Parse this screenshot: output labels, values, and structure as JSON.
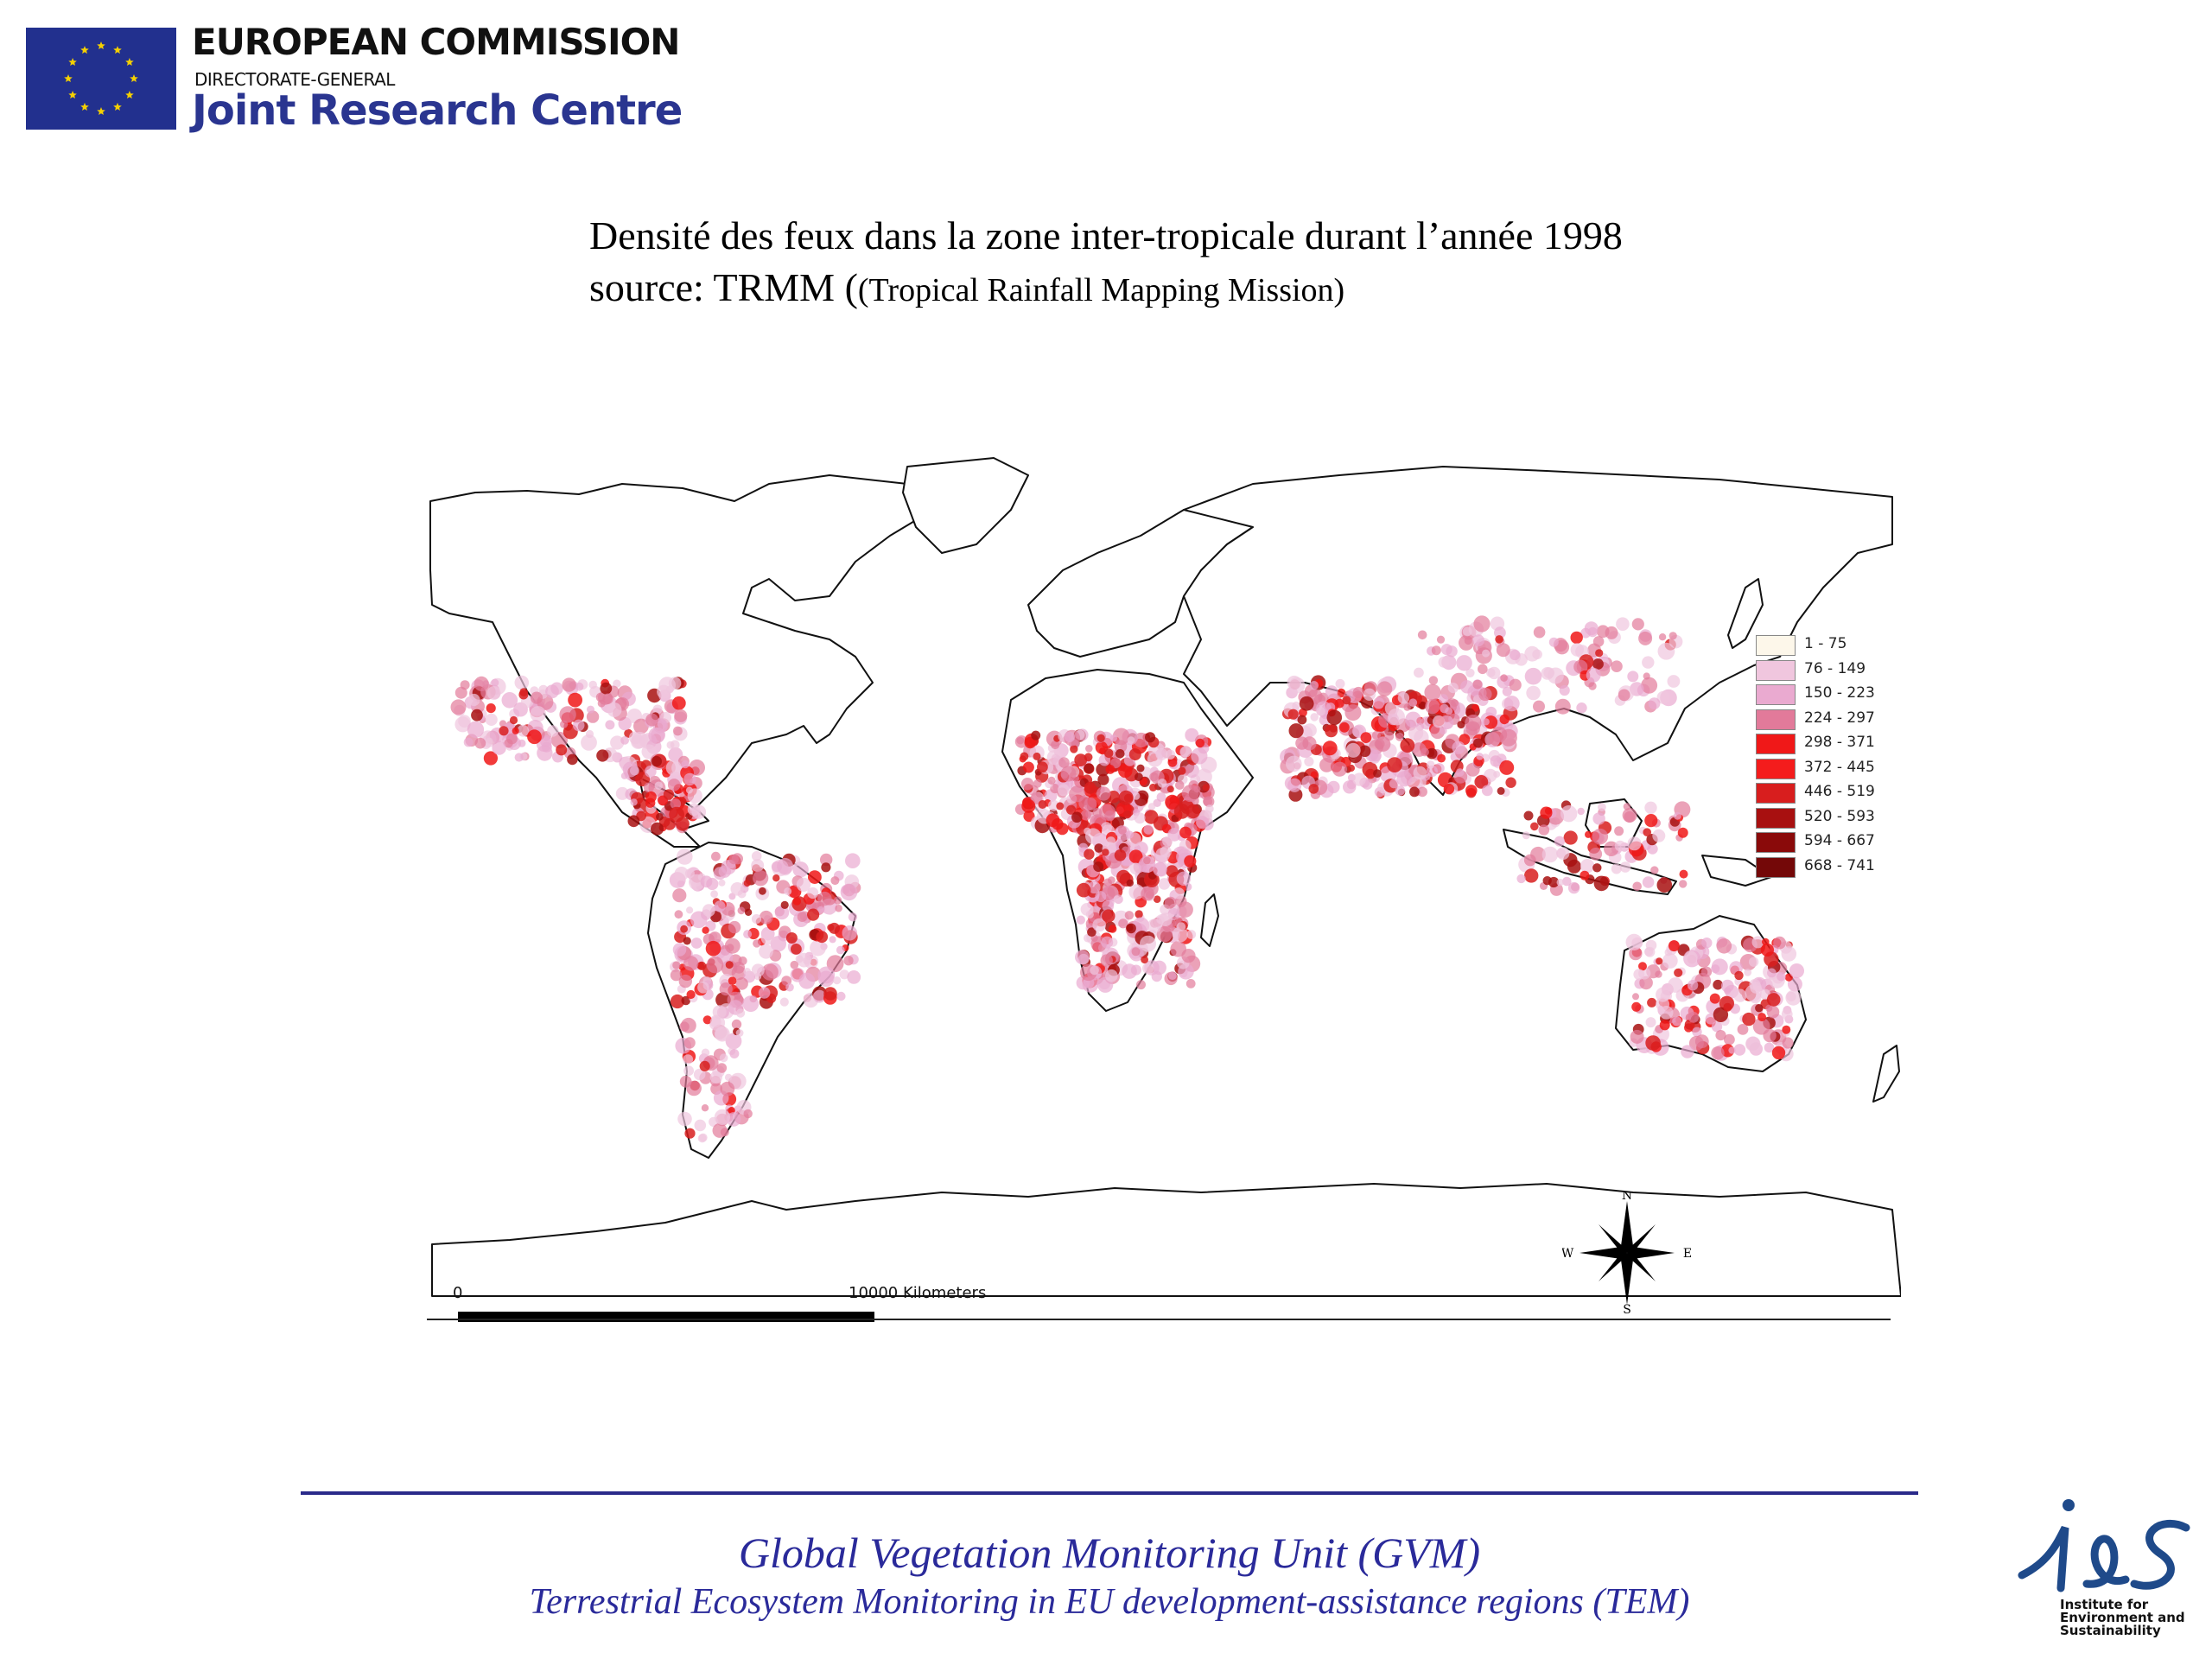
{
  "header": {
    "org_name": "EUROPEAN COMMISSION",
    "directorate": "DIRECTORATE-GENERAL",
    "unit": "Joint Research Centre"
  },
  "title": {
    "line1": "Densité des feux dans la zone inter-tropicale durant l’année 1998",
    "line2_prefix": "source: TRMM (",
    "line2_suffix": "(Tropical Rainfall Mapping Mission)"
  },
  "legend": {
    "items": [
      {
        "label": "1 - 75",
        "color": "#fdf7ea"
      },
      {
        "label": "76 - 149",
        "color": "#f0c6de"
      },
      {
        "label": "150 - 223",
        "color": "#eaaad0"
      },
      {
        "label": "224 - 297",
        "color": "#e27a9a"
      },
      {
        "label": "298 - 371",
        "color": "#f01818"
      },
      {
        "label": "372 - 445",
        "color": "#f41c1c"
      },
      {
        "label": "446 - 519",
        "color": "#d81e1e"
      },
      {
        "label": "520 - 593",
        "color": "#a81010"
      },
      {
        "label": "594 - 667",
        "color": "#8a0a0a"
      },
      {
        "label": "668 - 741",
        "color": "#740808"
      }
    ]
  },
  "scale": {
    "start_label": "0",
    "end_label": "10000  Kilometers"
  },
  "compass": {
    "n": "N",
    "s": "S",
    "e": "E",
    "w": "W"
  },
  "footer": {
    "line1": "Global Vegetation Monitoring Unit (GVM)",
    "line2": "Terrestrial Ecosystem Monitoring in EU development-assistance regions (TEM)"
  },
  "ies_logo": {
    "caption": "Institute for\nEnvironment and\nSustainability"
  },
  "colors": {
    "eu_blue": "#22308e",
    "footer_blue": "#2a2a9a",
    "fire_low": "#fdf7ea",
    "fire_pink": "#eaaad0",
    "fire_red": "#f01818",
    "fire_dark": "#740808"
  }
}
